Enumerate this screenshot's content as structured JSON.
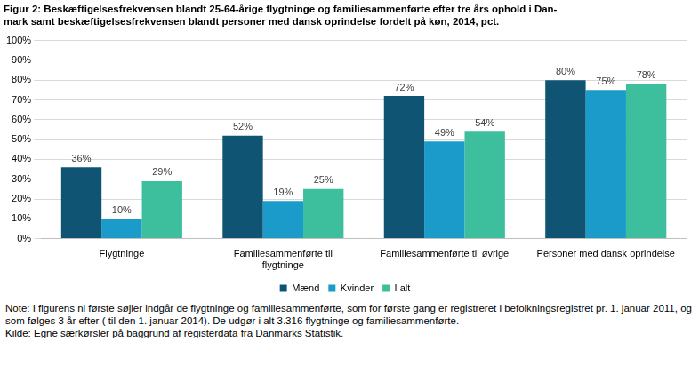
{
  "chart_data": {
    "type": "bar",
    "title": [
      "Figur 2: Beskæftigelsesfrekvensen blandt 25-64-årige flygtninge og familiesammenførte efter tre års ophold i Dan-",
      "mark samt beskæftigelsesfrekvensen blandt personer med dansk oprindelse fordelt på køn, 2014, pct."
    ],
    "categories": [
      "Flygtninge",
      [
        "Familiesammenførte til",
        "flygtninge"
      ],
      "Familiesammenførte til øvrige",
      "Personer med dansk oprindelse"
    ],
    "series": [
      {
        "name": "Mænd",
        "color": "#0f5472",
        "values": [
          36,
          52,
          72,
          80
        ],
        "value_labels": [
          "36%",
          "52%",
          "72%",
          "80%"
        ]
      },
      {
        "name": "Kvinder",
        "color": "#1a9bc9",
        "values": [
          10,
          19,
          49,
          75
        ],
        "value_labels": [
          "10%",
          "19%",
          "49%",
          "75%"
        ]
      },
      {
        "name": "I alt",
        "color": "#3dbf9d",
        "values": [
          29,
          25,
          54,
          78
        ],
        "value_labels": [
          "29%",
          "25%",
          "54%",
          "78%"
        ]
      }
    ],
    "ylim": [
      0,
      100
    ],
    "yticks": [
      {
        "value": 0,
        "label": "0%"
      },
      {
        "value": 10,
        "label": "10%"
      },
      {
        "value": 20,
        "label": "20%"
      },
      {
        "value": 30,
        "label": "30%"
      },
      {
        "value": 40,
        "label": "40%"
      },
      {
        "value": 50,
        "label": "50%"
      },
      {
        "value": 60,
        "label": "60%"
      },
      {
        "value": 70,
        "label": "70%"
      },
      {
        "value": 80,
        "label": "80%"
      },
      {
        "value": 90,
        "label": "90%"
      },
      {
        "value": 100,
        "label": "100%"
      }
    ],
    "grid": true,
    "legend": "bottom",
    "data_labels": true,
    "note": "Note: I figurens ni første søjler indgår de flygtninge og familiesammenførte,  som for første gang er registreret i befolkningsregistret pr. 1. januar 2011, og som følges 3 år efter ( til den 1. januar 2014). De udgør i alt 3.316 flygtninge og familiesammenførte.",
    "source": "Kilde: Egne særkørsler på baggrund af registerdata fra Danmarks Statistik."
  }
}
